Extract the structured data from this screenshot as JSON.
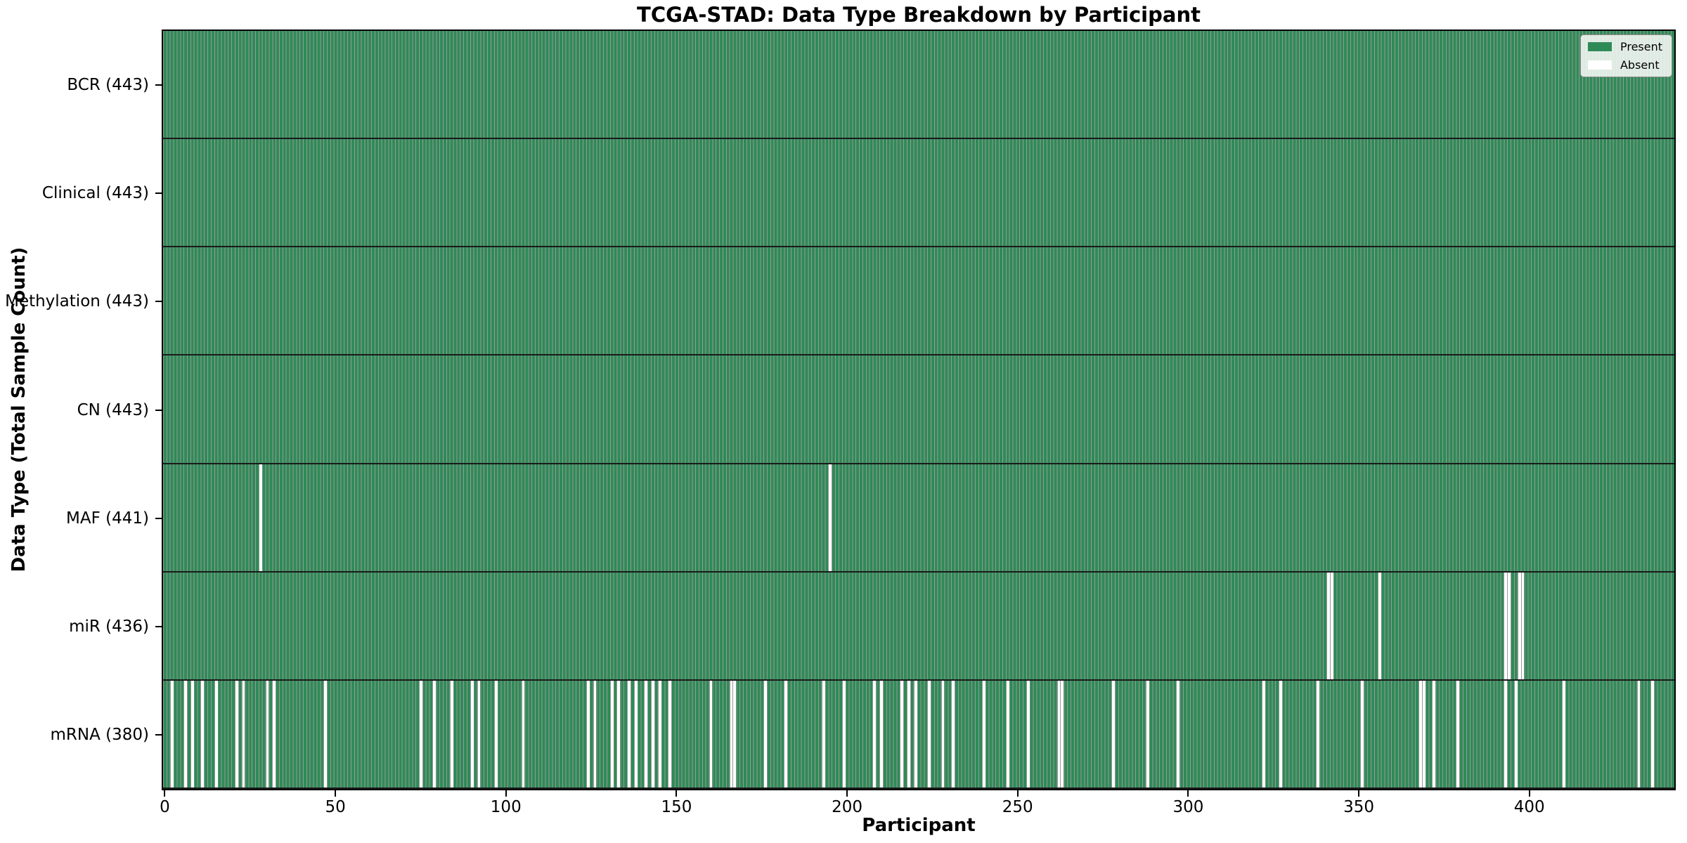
{
  "figure": {
    "background": "#ffffff"
  },
  "chart_data": {
    "type": "heatmap",
    "title": "TCGA-STAD: Data Type Breakdown by Participant",
    "xlabel": "Participant",
    "ylabel": "Data Type (Total Sample Count)",
    "n_participants": 443,
    "x_ticks": [
      0,
      50,
      100,
      150,
      200,
      250,
      300,
      350,
      400
    ],
    "xlim": [
      -0.5,
      442.5
    ],
    "grid": false,
    "legend_position": "upper right",
    "colors": {
      "present": "#2e8b57",
      "absent": "#ffffff",
      "bar_edge": "rgba(0,0,0,0.40)",
      "row_separator": "#1a1a1a"
    },
    "legend": [
      {
        "label": "Present",
        "color": "#2e8b57"
      },
      {
        "label": "Absent",
        "color": "#ffffff"
      }
    ],
    "rows": [
      {
        "label": "BCR (443)",
        "data_type": "BCR",
        "present_count": 443,
        "absent_indices": []
      },
      {
        "label": "Clinical (443)",
        "data_type": "Clinical",
        "present_count": 443,
        "absent_indices": []
      },
      {
        "label": "Methylation (443)",
        "data_type": "Methylation",
        "present_count": 443,
        "absent_indices": []
      },
      {
        "label": "CN (443)",
        "data_type": "CN",
        "present_count": 443,
        "absent_indices": []
      },
      {
        "label": "MAF (441)",
        "data_type": "MAF",
        "present_count": 441,
        "absent_indices": [
          28,
          195
        ]
      },
      {
        "label": "miR (436)",
        "data_type": "miR",
        "present_count": 436,
        "absent_indices": [
          341,
          342,
          356,
          393,
          394,
          397,
          398
        ]
      },
      {
        "label": "mRNA (380)",
        "data_type": "mRNA",
        "present_count": 380,
        "absent_indices": [
          2,
          6,
          8,
          11,
          15,
          21,
          23,
          30,
          32,
          47,
          75,
          79,
          84,
          90,
          92,
          97,
          105,
          124,
          126,
          131,
          133,
          136,
          138,
          141,
          143,
          145,
          148,
          160,
          166,
          167,
          176,
          182,
          193,
          199,
          208,
          210,
          216,
          218,
          220,
          224,
          228,
          231,
          240,
          247,
          253,
          262,
          263,
          278,
          288,
          297,
          322,
          327,
          338,
          351,
          368,
          369,
          372,
          379,
          393,
          396,
          410,
          432,
          436
        ]
      }
    ]
  }
}
